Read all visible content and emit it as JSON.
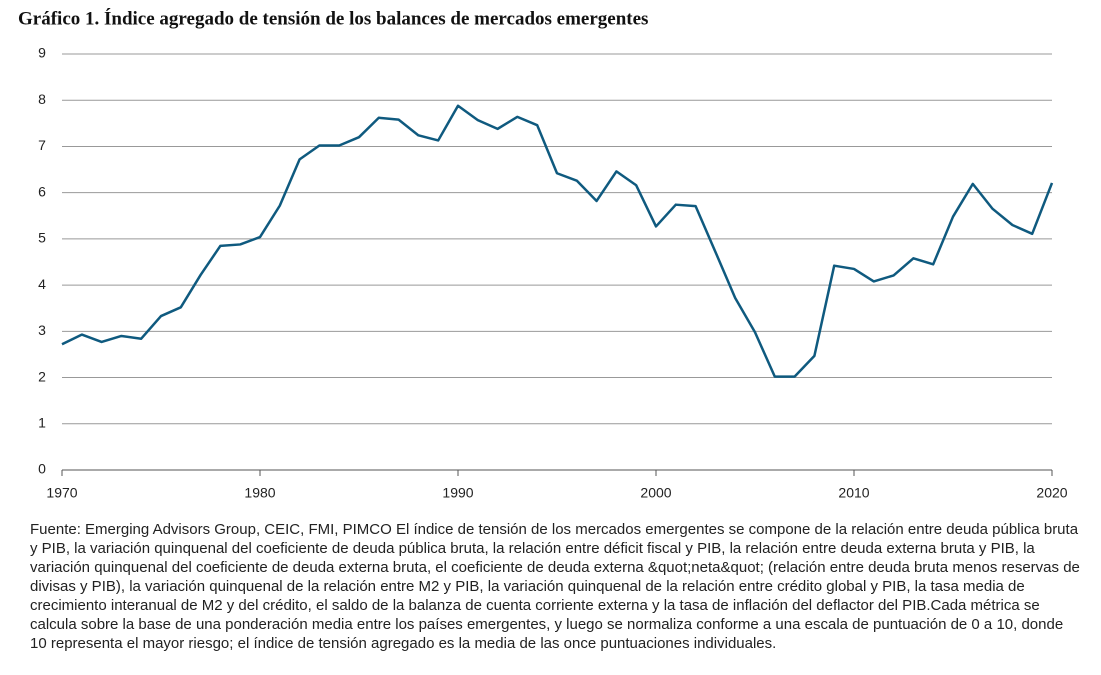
{
  "chart_data": {
    "type": "line",
    "title": "Gráfico 1. Índice agregado de tensión de los balances de mercados emergentes",
    "x": [
      1970,
      1971,
      1972,
      1973,
      1974,
      1975,
      1976,
      1977,
      1978,
      1979,
      1980,
      1981,
      1982,
      1983,
      1984,
      1985,
      1986,
      1987,
      1988,
      1989,
      1990,
      1991,
      1992,
      1993,
      1994,
      1995,
      1996,
      1997,
      1998,
      1999,
      2000,
      2001,
      2002,
      2003,
      2004,
      2005,
      2006,
      2007,
      2008,
      2009,
      2010,
      2011,
      2012,
      2013,
      2014,
      2015,
      2016,
      2017,
      2018,
      2019,
      2020
    ],
    "series": [
      {
        "color": "#0f5a7f",
        "values": [
          2.72,
          2.93,
          2.77,
          2.9,
          2.84,
          3.33,
          3.52,
          4.22,
          4.85,
          4.88,
          5.04,
          5.72,
          6.72,
          7.02,
          7.02,
          7.2,
          7.62,
          7.58,
          7.24,
          7.13,
          7.88,
          7.57,
          7.38,
          7.64,
          7.46,
          6.42,
          6.26,
          5.82,
          6.46,
          6.16,
          5.27,
          5.74,
          5.71,
          4.72,
          3.72,
          2.98,
          2.02,
          2.02,
          2.47,
          4.42,
          4.35,
          4.08,
          4.21,
          4.58,
          4.45,
          5.48,
          6.19,
          5.65,
          5.3,
          5.11,
          6.21
        ]
      }
    ],
    "xlim": [
      1970,
      2020
    ],
    "xticks": [
      1970,
      1980,
      1990,
      2000,
      2010,
      2020
    ],
    "ylim": [
      0,
      9
    ],
    "yticks": [
      0,
      1,
      2,
      3,
      4,
      5,
      6,
      7,
      8,
      9
    ],
    "grid": true,
    "footnote": "Fuente: Emerging Advisors Group, CEIC, FMI, PIMCO El índice de tensión de los mercados emergentes se compone de la relación entre deuda pública bruta y PIB, la variación quinquenal del coeficiente de deuda pública bruta, la relación entre déficit fiscal y PIB, la relación entre deuda externa bruta y PIB, la variación quinquenal del coeficiente de deuda externa bruta, el coeficiente de deuda externa &quot;neta&quot; (relación entre deuda bruta menos reservas de divisas y PIB), la variación quinquenal de la relación entre M2 y PIB, la variación quinquenal de la relación entre crédito global y PIB, la tasa media de crecimiento interanual de M2 y del crédito, el saldo de la balanza de cuenta corriente externa y la tasa de inflación del deflactor del PIB.Cada métrica se calcula sobre la base de una ponderación media entre los países emergentes, y luego se normaliza conforme a una escala de puntuación de 0 a 10, donde 10 representa el mayor riesgo; el índice de tensión agregado es la media de las once puntuaciones individuales."
  }
}
